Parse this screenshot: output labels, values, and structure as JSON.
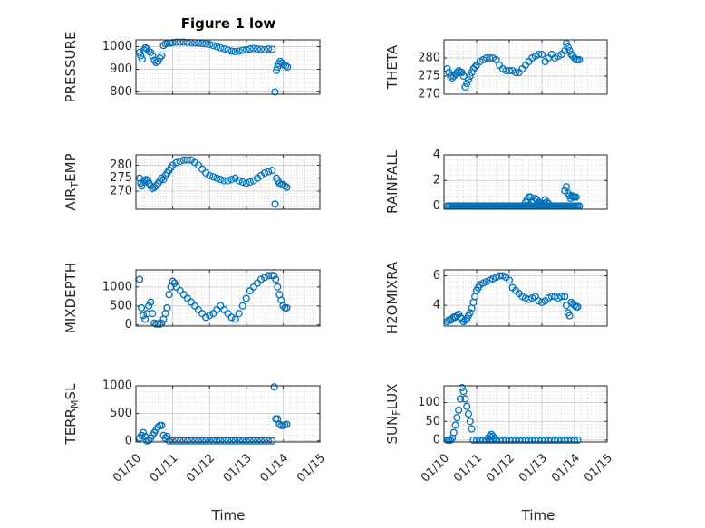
{
  "figure_title": "Figure 1 low",
  "x_axis_label": "Time",
  "colors": {
    "marker": "#0072BD",
    "axis": "#262626",
    "grid": "#c8c8c8"
  },
  "chart_data": [
    {
      "type": "scatter",
      "id": "pressure",
      "title": "Figure 1 low",
      "ylabel": "PRESSURE",
      "ylim": [
        790,
        1030
      ],
      "yticks": [
        800,
        900,
        1000
      ],
      "xlim": [
        0,
        5
      ],
      "xticks": [
        "01/10",
        "01/11",
        "01/12",
        "01/13",
        "01/14",
        "01/15"
      ],
      "x": [
        0.1,
        0.13,
        0.17,
        0.22,
        0.26,
        0.3,
        0.35,
        0.4,
        0.45,
        0.5,
        0.55,
        0.6,
        0.65,
        0.7,
        0.75,
        0.8,
        0.85,
        0.92,
        1.0,
        1.1,
        1.2,
        1.3,
        1.4,
        1.5,
        1.6,
        1.7,
        1.8,
        1.9,
        2.0,
        2.1,
        2.2,
        2.3,
        2.4,
        2.5,
        2.6,
        2.7,
        2.8,
        2.9,
        3.0,
        3.1,
        3.2,
        3.3,
        3.4,
        3.5,
        3.6,
        3.7,
        3.78,
        3.82,
        3.85,
        3.88,
        3.92,
        3.97,
        4.02,
        4.07,
        4.12
      ],
      "y": [
        975,
        960,
        945,
        985,
        995,
        990,
        980,
        975,
        960,
        940,
        930,
        935,
        950,
        960,
        1005,
        1012,
        1015,
        1016,
        1018,
        1020,
        1020,
        1020,
        1019,
        1018,
        1017,
        1016,
        1014,
        1012,
        1010,
        1005,
        1000,
        995,
        990,
        985,
        980,
        978,
        980,
        984,
        987,
        990,
        992,
        990,
        988,
        987,
        990,
        988,
        800,
        895,
        910,
        925,
        935,
        928,
        920,
        915,
        910
      ]
    },
    {
      "type": "scatter",
      "id": "theta",
      "title": "",
      "ylabel": "THETA",
      "ylim": [
        270,
        285
      ],
      "yticks": [
        270,
        275,
        280
      ],
      "xlim": [
        0,
        5
      ],
      "xticks": [
        "01/10",
        "01/11",
        "01/12",
        "01/13",
        "01/14",
        "01/15"
      ],
      "x": [
        0.1,
        0.15,
        0.2,
        0.25,
        0.3,
        0.35,
        0.4,
        0.45,
        0.5,
        0.55,
        0.6,
        0.65,
        0.7,
        0.75,
        0.8,
        0.85,
        0.9,
        0.95,
        1.0,
        1.1,
        1.2,
        1.3,
        1.4,
        1.5,
        1.6,
        1.7,
        1.8,
        1.9,
        2.0,
        2.1,
        2.2,
        2.3,
        2.4,
        2.5,
        2.6,
        2.7,
        2.8,
        2.9,
        3.0,
        3.1,
        3.2,
        3.3,
        3.4,
        3.5,
        3.6,
        3.7,
        3.75,
        3.8,
        3.85,
        3.9,
        3.95,
        4.0,
        4.05,
        4.1,
        4.15
      ],
      "y": [
        277,
        276,
        275,
        274.5,
        275,
        275.5,
        276,
        276.5,
        276,
        276,
        275,
        272,
        273,
        274,
        275,
        276,
        277,
        277.5,
        278,
        279,
        279.5,
        280,
        280,
        280,
        279.5,
        278,
        277,
        276.5,
        276.5,
        276.5,
        276,
        276,
        277,
        278,
        279,
        280,
        280.5,
        281,
        281,
        279,
        280,
        281,
        280,
        280.5,
        281,
        282,
        284,
        283,
        282,
        281,
        280.5,
        280,
        279.5,
        279.5,
        279.5
      ]
    },
    {
      "type": "scatter",
      "id": "airtemp",
      "title": "",
      "ylabel": "AIR_TEMP",
      "ylim": [
        263,
        284
      ],
      "yticks": [
        270,
        275,
        280
      ],
      "xlim": [
        0,
        5
      ],
      "xticks": [
        "01/10",
        "01/11",
        "01/12",
        "01/13",
        "01/14",
        "01/15"
      ],
      "x": [
        0.1,
        0.13,
        0.16,
        0.2,
        0.24,
        0.28,
        0.32,
        0.36,
        0.4,
        0.45,
        0.5,
        0.55,
        0.6,
        0.65,
        0.7,
        0.75,
        0.8,
        0.85,
        0.9,
        0.95,
        1.0,
        1.1,
        1.2,
        1.3,
        1.4,
        1.5,
        1.6,
        1.7,
        1.8,
        1.9,
        2.0,
        2.1,
        2.2,
        2.3,
        2.4,
        2.5,
        2.6,
        2.7,
        2.8,
        2.9,
        3.0,
        3.1,
        3.2,
        3.3,
        3.4,
        3.5,
        3.6,
        3.7,
        3.78,
        3.82,
        3.86,
        3.9,
        3.95,
        4.0,
        4.05,
        4.1
      ],
      "y": [
        275,
        273,
        272,
        273.5,
        274,
        274.5,
        274,
        273,
        272,
        271,
        271.5,
        272,
        273,
        274,
        275,
        274.5,
        276,
        277,
        278,
        279,
        280,
        281,
        281.5,
        282,
        282,
        282,
        281,
        280,
        278.5,
        277,
        276,
        275.5,
        275,
        274.5,
        274,
        274,
        274.5,
        275,
        274,
        273.5,
        273,
        273.5,
        274,
        275,
        276,
        277,
        277.5,
        278,
        265,
        275,
        274,
        273,
        272.5,
        272.5,
        272,
        271.5
      ]
    },
    {
      "type": "scatter",
      "id": "rainfall",
      "title": "",
      "ylabel": "RAINFALL",
      "ylim": [
        -0.25,
        4
      ],
      "yticks": [
        0,
        2,
        4
      ],
      "xlim": [
        0,
        5
      ],
      "xticks": [
        "01/10",
        "01/11",
        "01/12",
        "01/13",
        "01/14",
        "01/15"
      ],
      "x": [
        0.1,
        0.15,
        0.2,
        0.25,
        0.3,
        0.35,
        0.4,
        0.45,
        0.5,
        0.55,
        0.6,
        0.65,
        0.7,
        0.75,
        0.8,
        0.85,
        0.9,
        0.95,
        1.0,
        1.05,
        1.1,
        1.15,
        1.2,
        1.25,
        1.3,
        1.35,
        1.4,
        1.45,
        1.5,
        1.55,
        1.6,
        1.65,
        1.7,
        1.75,
        1.8,
        1.85,
        1.9,
        1.95,
        2.0,
        2.05,
        2.1,
        2.15,
        2.2,
        2.25,
        2.3,
        2.35,
        2.4,
        2.45,
        2.5,
        2.55,
        2.6,
        2.65,
        2.7,
        2.75,
        2.8,
        2.85,
        2.9,
        2.95,
        3.0,
        3.05,
        3.1,
        3.15,
        3.2,
        3.25,
        3.3,
        3.35,
        3.4,
        3.45,
        3.5,
        3.55,
        3.6,
        3.65,
        3.7,
        3.75,
        3.8,
        3.85,
        3.9,
        3.95,
        4.0,
        4.05,
        4.1,
        4.15,
        2.5,
        2.55,
        2.6,
        2.65,
        2.7,
        2.75,
        2.8,
        2.85,
        2.9,
        2.95,
        3.0,
        3.05,
        3.1,
        3.15,
        3.2,
        3.7,
        3.75,
        3.8,
        3.85,
        3.88,
        3.92,
        3.96,
        4.0,
        4.05
      ],
      "y": [
        0,
        0,
        0,
        0,
        0,
        0,
        0,
        0,
        0,
        0,
        0,
        0,
        0,
        0,
        0,
        0,
        0,
        0,
        0,
        0,
        0,
        0,
        0,
        0,
        0,
        0,
        0,
        0,
        0,
        0,
        0,
        0,
        0,
        0,
        0,
        0,
        0,
        0,
        0,
        0,
        0,
        0,
        0,
        0,
        0,
        0,
        0,
        0,
        0,
        0,
        0,
        0,
        0,
        0,
        0,
        0,
        0,
        0,
        0,
        0,
        0,
        0,
        0,
        0,
        0,
        0,
        0,
        0,
        0,
        0,
        0,
        0,
        0,
        0,
        0,
        0,
        0,
        0,
        0,
        0,
        0,
        0,
        0.3,
        0.5,
        0.7,
        0.7,
        0.3,
        0.4,
        0.6,
        0.5,
        0.3,
        0.2,
        0.1,
        0.2,
        0.5,
        0.3,
        0.2,
        1.2,
        1.5,
        1.0,
        0.8,
        0.6,
        0.8,
        0.7,
        0.7,
        0.7
      ]
    },
    {
      "type": "scatter",
      "id": "mixdepth",
      "title": "",
      "ylabel": "MIXDEPTH",
      "ylim": [
        -30,
        1450
      ],
      "yticks": [
        0,
        500,
        1000
      ],
      "xlim": [
        0,
        5
      ],
      "xticks": [
        "01/10",
        "01/11",
        "01/12",
        "01/13",
        "01/14",
        "01/15"
      ],
      "x": [
        0.1,
        0.15,
        0.2,
        0.25,
        0.3,
        0.35,
        0.4,
        0.45,
        0.5,
        0.55,
        0.6,
        0.65,
        0.7,
        0.75,
        0.8,
        0.85,
        0.9,
        0.95,
        1.0,
        1.05,
        1.1,
        1.2,
        1.3,
        1.4,
        1.5,
        1.6,
        1.7,
        1.8,
        1.9,
        2.0,
        2.1,
        2.2,
        2.3,
        2.4,
        2.5,
        2.6,
        2.7,
        2.8,
        2.9,
        3.0,
        3.1,
        3.2,
        3.3,
        3.4,
        3.5,
        3.6,
        3.7,
        3.75,
        3.8,
        3.85,
        3.9,
        3.95,
        4.0,
        4.05,
        4.1
      ],
      "y": [
        1200,
        450,
        250,
        150,
        300,
        500,
        600,
        300,
        50,
        20,
        30,
        20,
        50,
        150,
        300,
        450,
        800,
        1000,
        1150,
        1100,
        1000,
        900,
        800,
        700,
        600,
        500,
        400,
        300,
        200,
        250,
        300,
        400,
        500,
        400,
        300,
        200,
        150,
        300,
        500,
        700,
        900,
        1000,
        1100,
        1200,
        1250,
        1300,
        1300,
        1300,
        1200,
        1000,
        800,
        650,
        500,
        450,
        450
      ]
    },
    {
      "type": "scatter",
      "id": "h2omixra",
      "title": "",
      "ylabel": "H2OMIXRA",
      "ylim": [
        2.6,
        6.4
      ],
      "yticks": [
        4,
        6
      ],
      "xlim": [
        0,
        5
      ],
      "xticks": [
        "01/10",
        "01/11",
        "01/12",
        "01/13",
        "01/14",
        "01/15"
      ],
      "x": [
        0.1,
        0.15,
        0.2,
        0.25,
        0.3,
        0.35,
        0.4,
        0.45,
        0.5,
        0.55,
        0.6,
        0.65,
        0.7,
        0.75,
        0.8,
        0.85,
        0.9,
        0.95,
        1.0,
        1.05,
        1.1,
        1.2,
        1.3,
        1.4,
        1.5,
        1.6,
        1.7,
        1.8,
        1.9,
        2.0,
        2.1,
        2.2,
        2.3,
        2.4,
        2.5,
        2.6,
        2.7,
        2.8,
        2.9,
        3.0,
        3.1,
        3.2,
        3.3,
        3.4,
        3.5,
        3.6,
        3.7,
        3.75,
        3.8,
        3.85,
        3.9,
        3.95,
        4.0,
        4.05,
        4.1
      ],
      "y": [
        2.9,
        3.0,
        3.0,
        3.1,
        3.2,
        3.2,
        3.3,
        3.4,
        3.2,
        3.1,
        2.9,
        3.0,
        3.1,
        3.3,
        3.5,
        3.8,
        4.2,
        4.6,
        5.0,
        5.2,
        5.4,
        5.5,
        5.6,
        5.7,
        5.8,
        5.9,
        6.0,
        6.0,
        5.9,
        5.7,
        5.2,
        5.0,
        4.8,
        4.6,
        4.5,
        4.4,
        4.5,
        4.6,
        4.3,
        4.2,
        4.3,
        4.5,
        4.6,
        4.6,
        4.5,
        4.6,
        4.6,
        4.0,
        3.5,
        3.3,
        4.2,
        4.1,
        4.0,
        3.9,
        3.9
      ]
    },
    {
      "type": "scatter",
      "id": "terrmsl",
      "title": "",
      "ylabel": "TERR_MSL",
      "ylim": [
        -20,
        1000
      ],
      "yticks": [
        0,
        500,
        1000
      ],
      "xlim": [
        0,
        5
      ],
      "xticks": [
        "01/10",
        "01/11",
        "01/12",
        "01/13",
        "01/14",
        "01/15"
      ],
      "x": [
        0.1,
        0.15,
        0.2,
        0.25,
        0.3,
        0.35,
        0.4,
        0.45,
        0.5,
        0.55,
        0.6,
        0.65,
        0.7,
        0.75,
        0.8,
        0.85,
        0.9,
        1.0,
        1.1,
        1.2,
        1.3,
        1.4,
        1.5,
        1.6,
        1.7,
        1.8,
        1.9,
        2.0,
        2.1,
        2.2,
        2.3,
        2.4,
        2.5,
        2.6,
        2.7,
        2.8,
        2.9,
        3.0,
        3.1,
        3.2,
        3.3,
        3.4,
        3.5,
        3.6,
        3.7,
        3.76,
        3.8,
        3.85,
        3.9,
        3.95,
        4.0,
        4.05,
        4.1
      ],
      "y": [
        50,
        100,
        150,
        80,
        0,
        10,
        50,
        100,
        150,
        200,
        250,
        280,
        280,
        100,
        50,
        80,
        0,
        0,
        0,
        0,
        0,
        0,
        0,
        0,
        0,
        0,
        0,
        0,
        0,
        0,
        0,
        0,
        0,
        0,
        0,
        0,
        0,
        0,
        0,
        0,
        0,
        0,
        0,
        0,
        0,
        980,
        400,
        400,
        300,
        280,
        280,
        290,
        300
      ]
    },
    {
      "type": "scatter",
      "id": "sunflux",
      "title": "",
      "ylabel": "SUN_FLUX",
      "ylim": [
        -5,
        145
      ],
      "yticks": [
        0,
        50,
        100
      ],
      "xlim": [
        0,
        5
      ],
      "xticks": [
        "01/10",
        "01/11",
        "01/12",
        "01/13",
        "01/14",
        "01/15"
      ],
      "x": [
        0.1,
        0.15,
        0.2,
        0.25,
        0.3,
        0.35,
        0.4,
        0.45,
        0.5,
        0.55,
        0.6,
        0.65,
        0.7,
        0.75,
        0.8,
        0.85,
        0.9,
        1.0,
        1.1,
        1.2,
        1.3,
        1.4,
        1.5,
        1.6,
        1.7,
        1.8,
        1.9,
        2.0,
        2.1,
        2.2,
        2.3,
        2.4,
        2.5,
        2.6,
        2.7,
        2.8,
        2.9,
        3.0,
        3.1,
        3.2,
        3.3,
        3.4,
        3.5,
        3.6,
        3.7,
        3.8,
        3.9,
        4.0,
        4.1,
        1.35,
        1.4,
        1.45,
        1.5,
        1.55
      ],
      "y": [
        0,
        0,
        0,
        5,
        20,
        40,
        60,
        80,
        110,
        140,
        130,
        110,
        90,
        70,
        50,
        30,
        0,
        0,
        0,
        0,
        0,
        0,
        0,
        0,
        0,
        0,
        0,
        0,
        0,
        0,
        0,
        0,
        0,
        0,
        0,
        0,
        0,
        0,
        0,
        0,
        0,
        0,
        0,
        0,
        0,
        0,
        0,
        0,
        0,
        5,
        10,
        15,
        10,
        5
      ]
    }
  ]
}
